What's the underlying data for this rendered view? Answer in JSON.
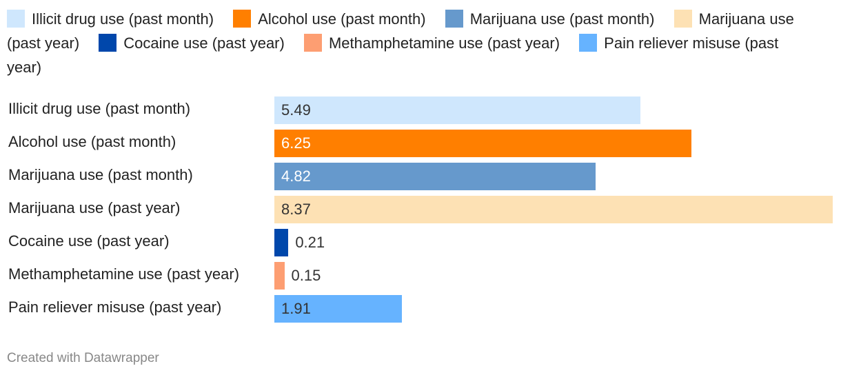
{
  "chart_data": {
    "type": "bar",
    "orientation": "horizontal",
    "categories": [
      "Illicit drug use (past month)",
      "Alcohol use (past month)",
      "Marijuana use (past month)",
      "Marijuana use (past year)",
      "Cocaine use (past year)",
      "Methamphetamine use (past year)",
      "Pain reliever misuse (past year)"
    ],
    "values": [
      5.49,
      6.25,
      4.82,
      8.37,
      0.21,
      0.15,
      1.91
    ],
    "value_labels": [
      "5.49",
      "6.25",
      "4.82",
      "8.37",
      "0.21",
      "0.15",
      "1.91"
    ],
    "colors": [
      "#cfe7fd",
      "#ff7f00",
      "#6699cc",
      "#fde1b4",
      "#0047ab",
      "#fd9e72",
      "#66b3ff"
    ],
    "label_colors": [
      "#333333",
      "#ffffff",
      "#ffffff",
      "#333333",
      "#333333",
      "#333333",
      "#333333"
    ],
    "legend": [
      "Illicit drug use (past month)",
      "Alcohol use (past month)",
      "Marijuana use (past month)",
      "Marijuana use (past year)",
      "Cocaine use (past year)",
      "Methamphetamine use (past year)",
      "Pain reliever misuse (past year)"
    ],
    "legend_placement": "top",
    "xlim": [
      0,
      8.37
    ],
    "grid": false,
    "title": "",
    "xlabel": "",
    "ylabel": ""
  },
  "footer": {
    "credit": "Created with Datawrapper"
  }
}
